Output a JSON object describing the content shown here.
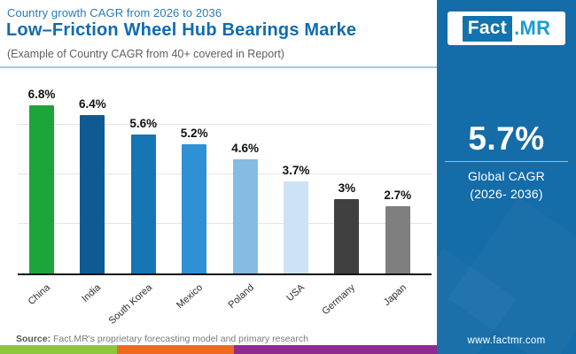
{
  "header": {
    "eyebrow": "Country growth CAGR from 2026 to 2036",
    "title": "Low–Friction Wheel Hub Bearings Marke",
    "subtitle": "(Example of Country CAGR from 40+ covered in Report)"
  },
  "logo": {
    "part1": "Fact",
    "part2": ".MR",
    "box_color": "#1273ae",
    "mr_color": "#1b9cd8"
  },
  "side_panel": {
    "bg_color": "#146ca8",
    "cagr_value": "5.7%",
    "cagr_label_line1": "Global CAGR",
    "cagr_label_line2": "(2026- 2036)",
    "website": "www.factmr.com"
  },
  "footer": {
    "source_label": "Source:",
    "source_text": " Fact.MR's proprietary forecasting model and primary research",
    "stripe_colors": [
      "#8cc63e",
      "#ed6b21",
      "#8f2a8f"
    ]
  },
  "chart_data": {
    "type": "bar",
    "title": "Country growth CAGR from 2026 to 2036",
    "categories": [
      "China",
      "India",
      "South Korea",
      "Mexico",
      "Poland",
      "USA",
      "Germany",
      "Japan"
    ],
    "values": [
      6.8,
      6.4,
      5.6,
      5.2,
      4.6,
      3.7,
      3.0,
      2.7
    ],
    "value_labels": [
      "6.8%",
      "6.4%",
      "5.6%",
      "5.2%",
      "4.6%",
      "3.7%",
      "3%",
      "2.7%"
    ],
    "bar_colors": [
      "#1ca53a",
      "#0e5b94",
      "#1575b5",
      "#2f90d3",
      "#84bce4",
      "#cbe3f5",
      "#404041",
      "#7f7f7f"
    ],
    "xlabel": "",
    "ylabel": "",
    "ylim": [
      0,
      7.5
    ],
    "gridlines": [
      2,
      4,
      6
    ],
    "grid": true,
    "legend": false
  }
}
